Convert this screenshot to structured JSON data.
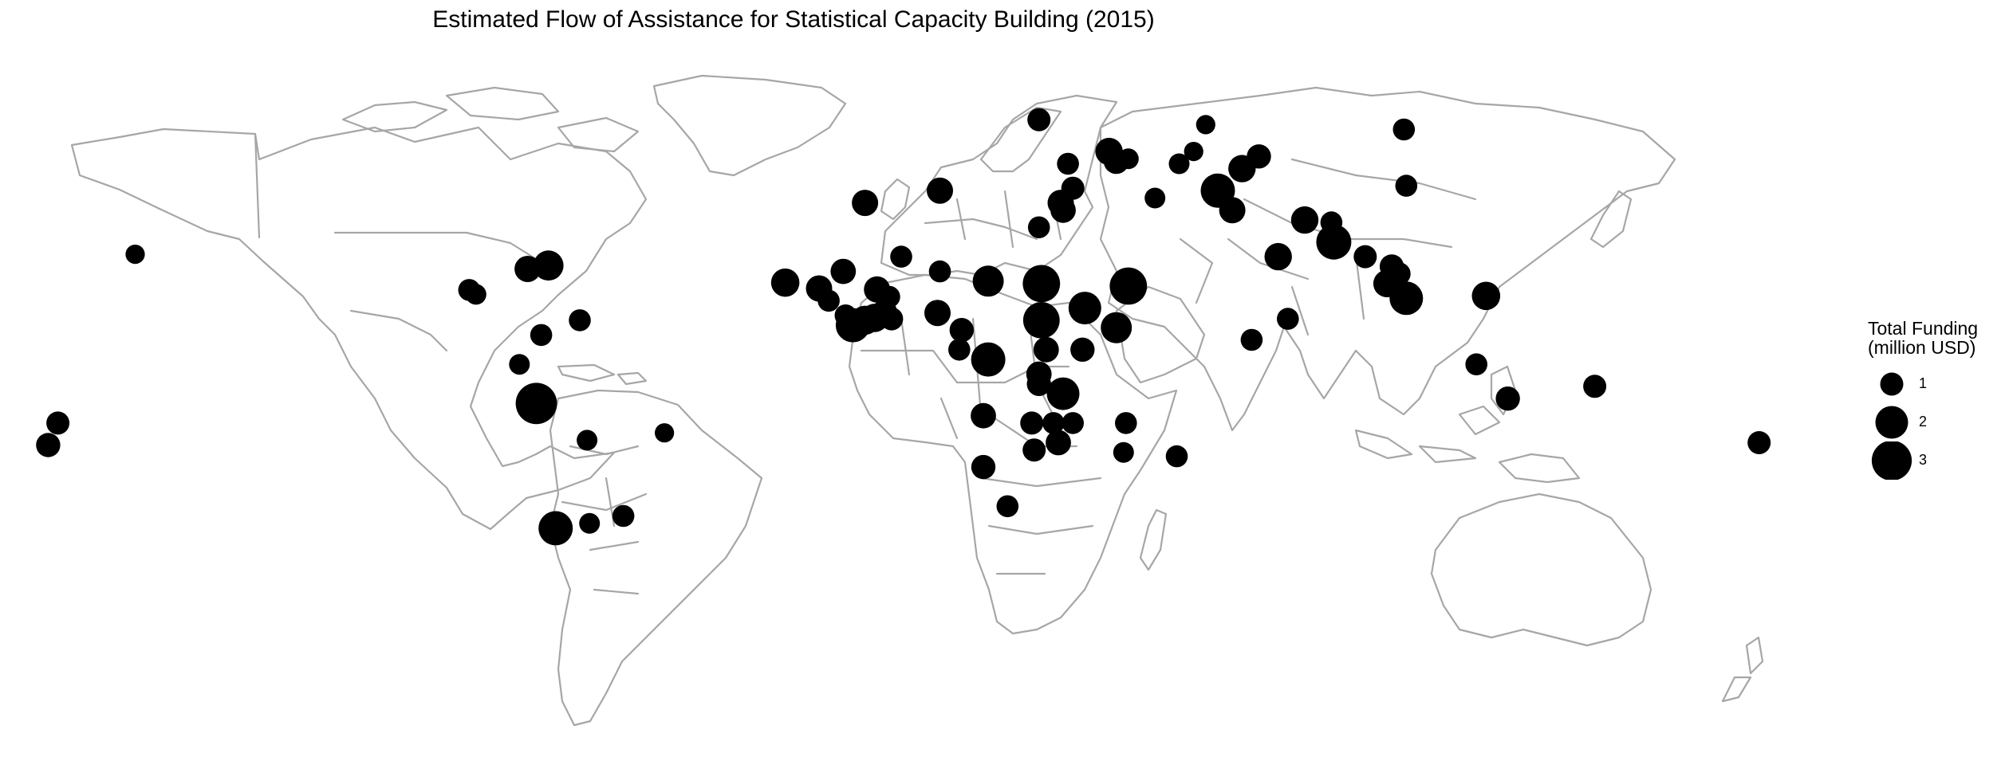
{
  "title": "Estimated Flow of Assistance for Statistical Capacity Building (2015)",
  "legend": {
    "title_line1": "Total Funding",
    "title_line2": "(million USD)",
    "items": [
      {
        "label": "1",
        "value": 1
      },
      {
        "label": "2",
        "value": 2
      },
      {
        "label": "3",
        "value": 3
      }
    ]
  },
  "colors": {
    "land_outline": "#a6a6a6",
    "bubble": "#000000",
    "background": "#ffffff"
  },
  "chart_data": {
    "type": "bubble-map",
    "size_variable": "Total Funding (million USD)",
    "points": [
      {
        "lon": -158.0,
        "lat": 21.0,
        "value": 0.7
      },
      {
        "lon": -174.0,
        "lat": -13.5,
        "value": 1.0
      },
      {
        "lon": -176.0,
        "lat": -18.0,
        "value": 1.1
      },
      {
        "lon": -88.9,
        "lat": 13.7,
        "value": 0.9
      },
      {
        "lon": -87.5,
        "lat": 12.8,
        "value": 0.8
      },
      {
        "lon": -76.8,
        "lat": 18.0,
        "value": 1.3
      },
      {
        "lon": -72.5,
        "lat": 18.7,
        "value": 1.7
      },
      {
        "lon": -74.0,
        "lat": 4.5,
        "value": 0.9
      },
      {
        "lon": -78.5,
        "lat": -1.5,
        "value": 0.8
      },
      {
        "lon": -66.0,
        "lat": 7.5,
        "value": 0.9
      },
      {
        "lon": -75.0,
        "lat": -9.5,
        "value": 3.2
      },
      {
        "lon": -64.5,
        "lat": -17.0,
        "value": 0.8
      },
      {
        "lon": -48.5,
        "lat": -15.5,
        "value": 0.7
      },
      {
        "lon": -71.0,
        "lat": -35.0,
        "value": 2.2
      },
      {
        "lon": -64.0,
        "lat": -34.0,
        "value": 0.8
      },
      {
        "lon": -57.0,
        "lat": -32.5,
        "value": 0.9
      },
      {
        "lon": -23.5,
        "lat": 15.2,
        "value": 1.5
      },
      {
        "lon": -16.5,
        "lat": 14.0,
        "value": 1.3
      },
      {
        "lon": -14.5,
        "lat": 11.5,
        "value": 0.9
      },
      {
        "lon": -11.0,
        "lat": 8.5,
        "value": 0.9
      },
      {
        "lon": -9.5,
        "lat": 6.5,
        "value": 2.2
      },
      {
        "lon": -7.0,
        "lat": 7.5,
        "value": 1.6
      },
      {
        "lon": -5.0,
        "lat": 8.0,
        "value": 1.5
      },
      {
        "lon": -3.0,
        "lat": 9.0,
        "value": 1.3
      },
      {
        "lon": -1.5,
        "lat": 7.8,
        "value": 1.0
      },
      {
        "lon": -2.0,
        "lat": 12.3,
        "value": 0.9
      },
      {
        "lon": -11.5,
        "lat": 17.5,
        "value": 1.2
      },
      {
        "lon": -4.5,
        "lat": 13.8,
        "value": 1.3
      },
      {
        "lon": -7.0,
        "lat": 31.5,
        "value": 1.3
      },
      {
        "lon": 0.5,
        "lat": 20.5,
        "value": 0.9
      },
      {
        "lon": 8.5,
        "lat": 34.0,
        "value": 1.3
      },
      {
        "lon": 8.5,
        "lat": 17.5,
        "value": 0.9
      },
      {
        "lon": 8.0,
        "lat": 9.0,
        "value": 1.3
      },
      {
        "lon": 18.5,
        "lat": 15.5,
        "value": 1.8
      },
      {
        "lon": 13.0,
        "lat": 5.5,
        "value": 1.1
      },
      {
        "lon": 12.5,
        "lat": 1.5,
        "value": 0.9
      },
      {
        "lon": 18.5,
        "lat": -0.5,
        "value": 2.2
      },
      {
        "lon": 17.5,
        "lat": -12.0,
        "value": 1.2
      },
      {
        "lon": 17.5,
        "lat": -22.5,
        "value": 1.1
      },
      {
        "lon": 22.5,
        "lat": -30.5,
        "value": 0.9
      },
      {
        "lon": 27.5,
        "lat": -13.5,
        "value": 1.0
      },
      {
        "lon": 32.0,
        "lat": -13.5,
        "value": 0.9
      },
      {
        "lon": 28.0,
        "lat": -19.0,
        "value": 1.0
      },
      {
        "lon": 33.0,
        "lat": -17.5,
        "value": 1.2
      },
      {
        "lon": 36.0,
        "lat": -13.5,
        "value": 0.9
      },
      {
        "lon": 29.0,
        "lat": -3.5,
        "value": 1.2
      },
      {
        "lon": 29.0,
        "lat": -5.5,
        "value": 1.1
      },
      {
        "lon": 30.5,
        "lat": 1.5,
        "value": 1.2
      },
      {
        "lon": 34.0,
        "lat": -7.5,
        "value": 2.0
      },
      {
        "lon": 38.0,
        "lat": 1.5,
        "value": 1.1
      },
      {
        "lon": 29.5,
        "lat": 7.5,
        "value": 2.5
      },
      {
        "lon": 29.5,
        "lat": 15.0,
        "value": 2.6
      },
      {
        "lon": 38.5,
        "lat": 10.0,
        "value": 2.0
      },
      {
        "lon": 45.0,
        "lat": 6.0,
        "value": 1.8
      },
      {
        "lon": 47.5,
        "lat": 14.5,
        "value": 2.6
      },
      {
        "lon": 29.0,
        "lat": 26.5,
        "value": 0.9
      },
      {
        "lon": 47.0,
        "lat": -13.5,
        "value": 0.9
      },
      {
        "lon": 46.5,
        "lat": -19.5,
        "value": 0.8
      },
      {
        "lon": 57.5,
        "lat": -20.3,
        "value": 0.9
      },
      {
        "lon": 29.0,
        "lat": 48.5,
        "value": 1.0
      },
      {
        "lon": 35.0,
        "lat": 39.5,
        "value": 0.9
      },
      {
        "lon": 43.5,
        "lat": 42.0,
        "value": 1.4
      },
      {
        "lon": 45.0,
        "lat": 40.0,
        "value": 1.2
      },
      {
        "lon": 47.5,
        "lat": 40.5,
        "value": 0.8
      },
      {
        "lon": 36.0,
        "lat": 34.5,
        "value": 1.0
      },
      {
        "lon": 33.5,
        "lat": 31.5,
        "value": 1.3
      },
      {
        "lon": 34.0,
        "lat": 30.0,
        "value": 1.2
      },
      {
        "lon": 53.0,
        "lat": 32.5,
        "value": 0.8
      },
      {
        "lon": 58.0,
        "lat": 39.5,
        "value": 0.8
      },
      {
        "lon": 61.0,
        "lat": 42.0,
        "value": 0.7
      },
      {
        "lon": 63.5,
        "lat": 47.5,
        "value": 0.7
      },
      {
        "lon": 66.0,
        "lat": 34.0,
        "value": 2.2
      },
      {
        "lon": 69.0,
        "lat": 30.0,
        "value": 1.3
      },
      {
        "lon": 71.0,
        "lat": 38.5,
        "value": 1.4
      },
      {
        "lon": 74.5,
        "lat": 41.0,
        "value": 1.1
      },
      {
        "lon": 84.0,
        "lat": 28.0,
        "value": 1.4
      },
      {
        "lon": 89.5,
        "lat": 27.5,
        "value": 0.9
      },
      {
        "lon": 90.0,
        "lat": 23.5,
        "value": 2.3
      },
      {
        "lon": 78.5,
        "lat": 20.5,
        "value": 1.4
      },
      {
        "lon": 80.5,
        "lat": 7.8,
        "value": 0.9
      },
      {
        "lon": 73.0,
        "lat": 3.5,
        "value": 0.9
      },
      {
        "lon": 96.5,
        "lat": 20.5,
        "value": 1.0
      },
      {
        "lon": 102.0,
        "lat": 18.5,
        "value": 1.1
      },
      {
        "lon": 103.5,
        "lat": 17.0,
        "value": 1.0
      },
      {
        "lon": 101.0,
        "lat": 15.0,
        "value": 1.4
      },
      {
        "lon": 105.0,
        "lat": 12.0,
        "value": 2.1
      },
      {
        "lon": 121.5,
        "lat": 12.5,
        "value": 1.5
      },
      {
        "lon": 104.5,
        "lat": 46.5,
        "value": 0.9
      },
      {
        "lon": 105.0,
        "lat": 35.0,
        "value": 0.9
      },
      {
        "lon": 119.5,
        "lat": -1.5,
        "value": 0.9
      },
      {
        "lon": 126.0,
        "lat": -8.5,
        "value": 1.1
      },
      {
        "lon": 144.0,
        "lat": -6.0,
        "value": 1.0
      },
      {
        "lon": 178.0,
        "lat": -17.5,
        "value": 1.0
      }
    ]
  }
}
